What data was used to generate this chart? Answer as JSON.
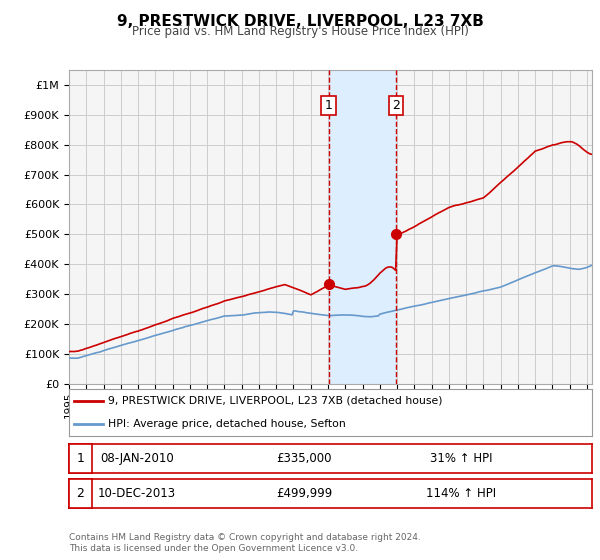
{
  "title": "9, PRESTWICK DRIVE, LIVERPOOL, L23 7XB",
  "subtitle": "Price paid vs. HM Land Registry's House Price Index (HPI)",
  "ytick_values": [
    0,
    100000,
    200000,
    300000,
    400000,
    500000,
    600000,
    700000,
    800000,
    900000,
    1000000
  ],
  "ylim": [
    0,
    1050000
  ],
  "xlim_start": 1995.0,
  "xlim_end": 2025.3,
  "marker1_x": 2010.03,
  "marker1_y": 335000,
  "marker2_x": 2013.94,
  "marker2_y": 499999,
  "shade_x1": 2010.03,
  "shade_x2": 2013.94,
  "legend_line1": "9, PRESTWICK DRIVE, LIVERPOOL, L23 7XB (detached house)",
  "legend_line2": "HPI: Average price, detached house, Sefton",
  "table_row1": [
    "1",
    "08-JAN-2010",
    "£335,000",
    "31% ↑ HPI"
  ],
  "table_row2": [
    "2",
    "10-DEC-2013",
    "£499,999",
    "114% ↑ HPI"
  ],
  "footer": "Contains HM Land Registry data © Crown copyright and database right 2024.\nThis data is licensed under the Open Government Licence v3.0.",
  "red_color": "#cc0000",
  "blue_color": "#6699cc",
  "shade_color": "#ddeeff",
  "grid_color": "#cccccc",
  "bg_color": "#f5f5f5"
}
